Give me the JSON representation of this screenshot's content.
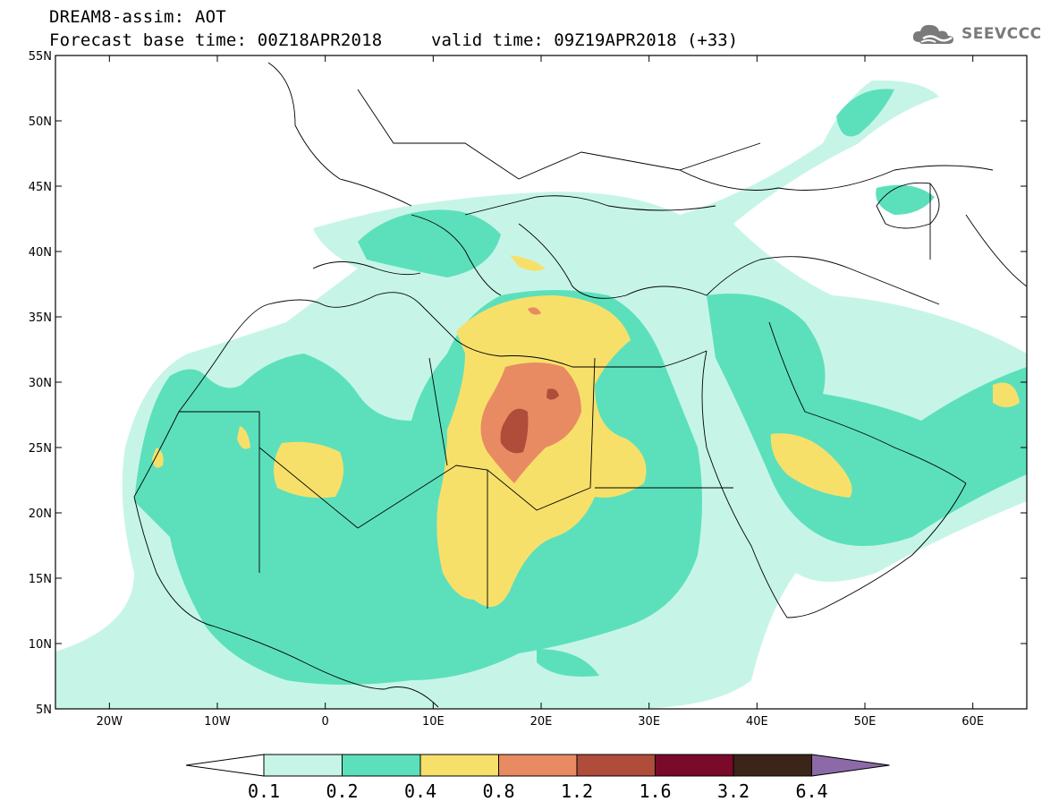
{
  "header": {
    "title": "DREAM8-assim: AOT",
    "base_time": "Forecast base time: 00Z18APR2018",
    "valid_time": "valid time: 09Z19APR2018 (+33)"
  },
  "logo": {
    "text": "SEEVCCC",
    "icon": "cloud-icon"
  },
  "map": {
    "lon_range": [
      -25,
      65
    ],
    "lat_range": [
      5,
      55
    ],
    "lat_ticks": [
      {
        "value": 55,
        "label": "55N"
      },
      {
        "value": 50,
        "label": "50N"
      },
      {
        "value": 45,
        "label": "45N"
      },
      {
        "value": 40,
        "label": "40N"
      },
      {
        "value": 35,
        "label": "35N"
      },
      {
        "value": 30,
        "label": "30N"
      },
      {
        "value": 25,
        "label": "25N"
      },
      {
        "value": 20,
        "label": "20N"
      },
      {
        "value": 15,
        "label": "15N"
      },
      {
        "value": 10,
        "label": "10N"
      },
      {
        "value": 5,
        "label": "5N"
      }
    ],
    "lon_ticks": [
      {
        "value": -20,
        "label": "20W"
      },
      {
        "value": -10,
        "label": "10W"
      },
      {
        "value": 0,
        "label": "0"
      },
      {
        "value": 10,
        "label": "10E"
      },
      {
        "value": 20,
        "label": "20E"
      },
      {
        "value": 30,
        "label": "30E"
      },
      {
        "value": 40,
        "label": "40E"
      },
      {
        "value": 50,
        "label": "50E"
      },
      {
        "value": 60,
        "label": "60E"
      }
    ]
  },
  "colorbar": {
    "colors": [
      "#c6f5e8",
      "#5ce0bc",
      "#f7e06a",
      "#e88b62",
      "#b04c3a",
      "#7a0a2a",
      "#3b2418",
      "#8c6aa8"
    ],
    "labels": [
      "0.1",
      "0.2",
      "0.4",
      "0.8",
      "1.2",
      "1.6",
      "3.2",
      "6.4"
    ]
  }
}
